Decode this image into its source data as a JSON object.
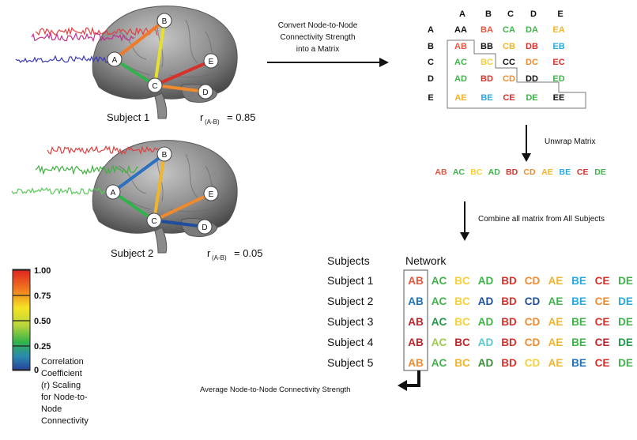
{
  "subject1": {
    "label": "Subject 1",
    "r_symbol": "r",
    "r_sub": "(A-B)",
    "r_eq": "=  0.85"
  },
  "subject2": {
    "label": "Subject 2",
    "r_symbol": "r",
    "r_sub": "(A-B)",
    "r_eq": "=  0.05"
  },
  "nodes": [
    "A",
    "B",
    "C",
    "D",
    "E"
  ],
  "convert_text": [
    "Convert  Node-to-Node",
    "Connectivity Strength",
    "into  a  Matrix"
  ],
  "matrix": {
    "col_headers": [
      "A",
      "B",
      "C",
      "D",
      "E"
    ],
    "row_headers": [
      "A",
      "B",
      "C",
      "D",
      "E"
    ],
    "cells": [
      [
        {
          "t": "AA",
          "c": "#111111"
        },
        {
          "t": "BA",
          "c": "#e8553d"
        },
        {
          "t": "CA",
          "c": "#3fb34a"
        },
        {
          "t": "DA",
          "c": "#3fb34a"
        },
        {
          "t": "EA",
          "c": "#f0b528"
        }
      ],
      [
        {
          "t": "AB",
          "c": "#e8553d"
        },
        {
          "t": "BB",
          "c": "#111111"
        },
        {
          "t": "CB",
          "c": "#f0b528"
        },
        {
          "t": "DB",
          "c": "#d8302a"
        },
        {
          "t": "EB",
          "c": "#28a9e0"
        }
      ],
      [
        {
          "t": "AC",
          "c": "#3fb34a"
        },
        {
          "t": "BC",
          "c": "#f6cf3a"
        },
        {
          "t": "CC",
          "c": "#111111"
        },
        {
          "t": "DC",
          "c": "#f08a2c"
        },
        {
          "t": "EC",
          "c": "#d8302a"
        }
      ],
      [
        {
          "t": "AD",
          "c": "#3fb34a"
        },
        {
          "t": "BD",
          "c": "#d8302a"
        },
        {
          "t": "CD",
          "c": "#f08a2c"
        },
        {
          "t": "DD",
          "c": "#111111"
        },
        {
          "t": "ED",
          "c": "#3fb34a"
        }
      ],
      [
        {
          "t": "AE",
          "c": "#f0b528"
        },
        {
          "t": "BE",
          "c": "#28a9e0"
        },
        {
          "t": "CE",
          "c": "#d8302a"
        },
        {
          "t": "DE",
          "c": "#3fb34a"
        },
        {
          "t": "EE",
          "c": "#111111"
        }
      ]
    ]
  },
  "unwrap_label": "Unwrap Matrix",
  "unwrapped": [
    {
      "t": "AB",
      "c": "#e8553d"
    },
    {
      "t": "AC",
      "c": "#3fb34a"
    },
    {
      "t": "BC",
      "c": "#f6cf3a"
    },
    {
      "t": "AD",
      "c": "#3fb34a"
    },
    {
      "t": "BD",
      "c": "#d8302a"
    },
    {
      "t": "CD",
      "c": "#f08a2c"
    },
    {
      "t": "AE",
      "c": "#f0b528"
    },
    {
      "t": "BE",
      "c": "#28a9e0"
    },
    {
      "t": "CE",
      "c": "#d8302a"
    },
    {
      "t": "DE",
      "c": "#3fb34a"
    }
  ],
  "combine_label": "Combine all matrix from All Subjects",
  "table": {
    "header_subjects": "Subjects",
    "header_network": "Network",
    "rows": [
      {
        "subject": "Subject 1",
        "cells": [
          {
            "t": "AB",
            "c": "#e8553d"
          },
          {
            "t": "AC",
            "c": "#3fb34a"
          },
          {
            "t": "BC",
            "c": "#f6cf3a"
          },
          {
            "t": "AD",
            "c": "#3fb34a"
          },
          {
            "t": "BD",
            "c": "#d8302a"
          },
          {
            "t": "CD",
            "c": "#f08a2c"
          },
          {
            "t": "AE",
            "c": "#f0b528"
          },
          {
            "t": "BE",
            "c": "#28a9e0"
          },
          {
            "t": "CE",
            "c": "#d8302a"
          },
          {
            "t": "DE",
            "c": "#3fb34a"
          }
        ]
      },
      {
        "subject": "Subject 2",
        "cells": [
          {
            "t": "AB",
            "c": "#1f72b8"
          },
          {
            "t": "AC",
            "c": "#3fb34a"
          },
          {
            "t": "BC",
            "c": "#f6cf3a"
          },
          {
            "t": "AD",
            "c": "#1f4e9c"
          },
          {
            "t": "BD",
            "c": "#d8302a"
          },
          {
            "t": "CD",
            "c": "#1f4e9c"
          },
          {
            "t": "AE",
            "c": "#3fb34a"
          },
          {
            "t": "BE",
            "c": "#28a9e0"
          },
          {
            "t": "CE",
            "c": "#f08a2c"
          },
          {
            "t": "DE",
            "c": "#28a9e0"
          }
        ]
      },
      {
        "subject": "Subject 3",
        "cells": [
          {
            "t": "AB",
            "c": "#c0242a"
          },
          {
            "t": "AC",
            "c": "#1e9a48"
          },
          {
            "t": "BC",
            "c": "#f6cf3a"
          },
          {
            "t": "AD",
            "c": "#3fb34a"
          },
          {
            "t": "BD",
            "c": "#d8302a"
          },
          {
            "t": "CD",
            "c": "#f08a2c"
          },
          {
            "t": "AE",
            "c": "#f0b528"
          },
          {
            "t": "BE",
            "c": "#3fb34a"
          },
          {
            "t": "CE",
            "c": "#d8302a"
          },
          {
            "t": "DE",
            "c": "#3fb34a"
          }
        ]
      },
      {
        "subject": "Subject 4",
        "cells": [
          {
            "t": "AB",
            "c": "#c0242a"
          },
          {
            "t": "AC",
            "c": "#9ccc4a"
          },
          {
            "t": "BC",
            "c": "#c0242a"
          },
          {
            "t": "AD",
            "c": "#5bc6cf"
          },
          {
            "t": "BD",
            "c": "#d8302a"
          },
          {
            "t": "CD",
            "c": "#f08a2c"
          },
          {
            "t": "AE",
            "c": "#f0b528"
          },
          {
            "t": "BE",
            "c": "#3fb34a"
          },
          {
            "t": "CE",
            "c": "#c0242a"
          },
          {
            "t": "DE",
            "c": "#1e9a48"
          }
        ]
      },
      {
        "subject": "Subject 5",
        "cells": [
          {
            "t": "AB",
            "c": "#f08a2c"
          },
          {
            "t": "AC",
            "c": "#3fb34a"
          },
          {
            "t": "BC",
            "c": "#f0b528"
          },
          {
            "t": "AD",
            "c": "#3b8e3a"
          },
          {
            "t": "BD",
            "c": "#d8302a"
          },
          {
            "t": "CD",
            "c": "#f6cf3a"
          },
          {
            "t": "AE",
            "c": "#f0b528"
          },
          {
            "t": "BE",
            "c": "#1f72b8"
          },
          {
            "t": "CE",
            "c": "#d8302a"
          },
          {
            "t": "DE",
            "c": "#3fb34a"
          }
        ]
      }
    ]
  },
  "average_label": "Average Node-to-Node Connectivity Strength",
  "colorbar": {
    "ticks": [
      "1.00",
      "0.75",
      "0.50",
      "0.25",
      "0"
    ],
    "label": [
      "Correlation",
      "Coefficient",
      "(r) Scaling",
      "for Node-to-",
      "Node",
      "Connectivity"
    ],
    "colors": [
      "#e02020",
      "#f07a1e",
      "#f6e324",
      "#b9d63b",
      "#32b34a",
      "#2a8ab0",
      "#283f99"
    ]
  },
  "brain1_edges": [
    {
      "from": "A",
      "to": "B",
      "color": "#f07a2a"
    },
    {
      "from": "B",
      "to": "C",
      "color": "#e8e030"
    },
    {
      "from": "A",
      "to": "C",
      "color": "#2fb34a"
    },
    {
      "from": "C",
      "to": "E",
      "color": "#d8302a"
    },
    {
      "from": "C",
      "to": "D",
      "color": "#f08a2c"
    }
  ],
  "brain2_edges": [
    {
      "from": "A",
      "to": "B",
      "color": "#2a72c0"
    },
    {
      "from": "B",
      "to": "C",
      "color": "#f0b528"
    },
    {
      "from": "A",
      "to": "C",
      "color": "#2fb34a"
    },
    {
      "from": "C",
      "to": "E",
      "color": "#f08a2c"
    },
    {
      "from": "C",
      "to": "D",
      "color": "#1f4e9c"
    }
  ]
}
